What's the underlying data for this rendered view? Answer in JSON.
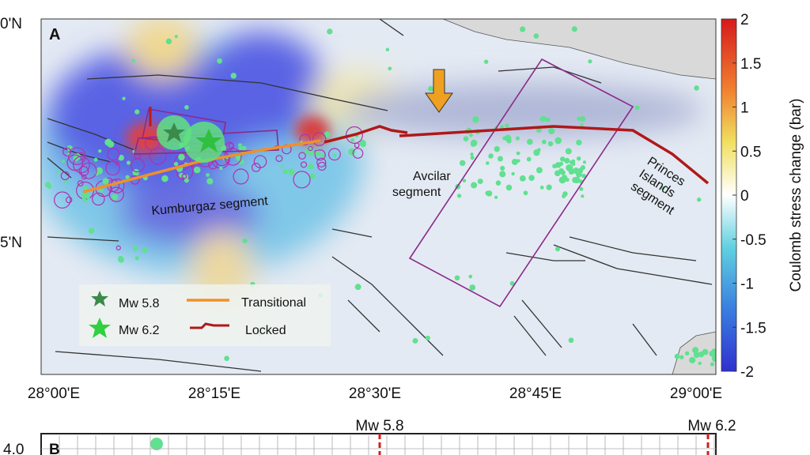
{
  "panel_a": {
    "label": "A",
    "lat_labels": [
      "0'N",
      "5'N"
    ],
    "lon_labels": [
      "28°00'E",
      "28°15'E",
      "28°30'E",
      "28°45'E",
      "29°00'E"
    ],
    "segments": {
      "kumburgaz": "Kumburgaz segment",
      "avcilar": [
        "Avcilar",
        "segment"
      ],
      "princes": [
        "Princes",
        "Islands",
        "segment"
      ]
    },
    "legend": {
      "mw58": "Mw 5.8",
      "mw62": "Mw 6.2",
      "transitional": "Transitional",
      "locked": "Locked"
    }
  },
  "colorbar": {
    "title": "Coulomb stress change (bar)",
    "lim": [
      -2,
      2
    ],
    "ticks": [
      2,
      1.5,
      1,
      0.5,
      0,
      -0.5,
      -1,
      -1.5,
      -2
    ]
  },
  "panel_b": {
    "label": "B",
    "y_tick": "4.0",
    "markers": [
      "Mw 5.8",
      "Mw 6.2"
    ]
  }
}
